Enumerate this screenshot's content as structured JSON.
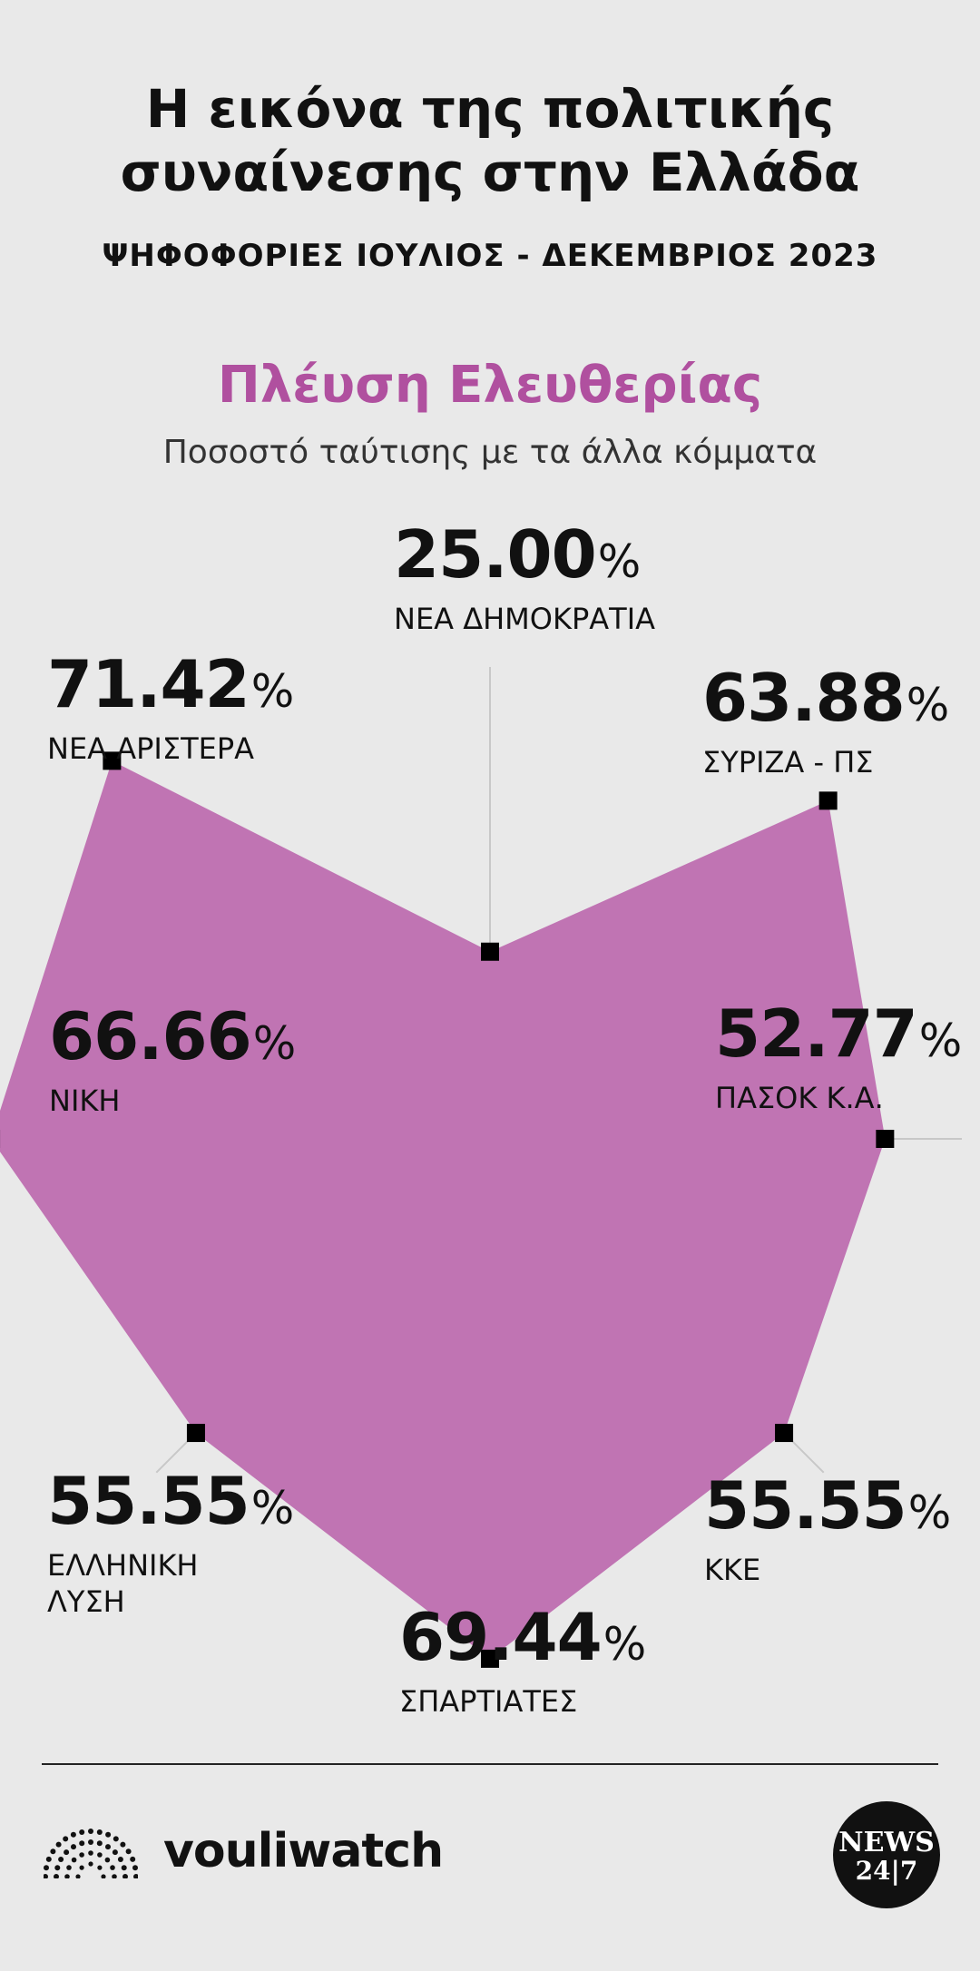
{
  "header": {
    "title_line1": "Η εικόνα της πολιτικής",
    "title_line2": "συναίνεσης στην Ελλάδα",
    "subtitle": "ΨΗΦΟΦΟΡΙΕΣ ΙΟΥΛΙΟΣ - ΔΕΚΕΜΒΡΙΟΣ 2023"
  },
  "party": {
    "name": "Πλέυση Ελευθερίας",
    "description": "Ποσοστό ταύτισης με τα άλλα κόμματα",
    "color": "#b0509f"
  },
  "chart_data": {
    "type": "radar",
    "title": "Πλέυση Ελευθερίας",
    "subtitle": "Ποσοστό ταύτισης με τα άλλα κόμματα",
    "unit": "%",
    "range": [
      0,
      100
    ],
    "fill_color": "#c074b3",
    "axes": [
      {
        "label": "ΝΕΑ ΔΗΜΟΚΡΑΤΙΑ",
        "value": 25.0,
        "display": "25.00"
      },
      {
        "label": "ΣΥΡΙΖΑ - ΠΣ",
        "value": 63.88,
        "display": "63.88"
      },
      {
        "label": "ΠΑΣΟΚ Κ.Α.",
        "value": 52.77,
        "display": "52.77"
      },
      {
        "label": "ΚΚΕ",
        "value": 55.55,
        "display": "55.55"
      },
      {
        "label": "ΣΠΑΡΤΙΑΤΕΣ",
        "value": 69.44,
        "display": "69.44"
      },
      {
        "label": "ΕΛΛΗΝΙΚΗ ΛΥΣΗ",
        "value": 55.55,
        "display": "55.55"
      },
      {
        "label": "ΝΙΚΗ",
        "value": 66.66,
        "display": "66.66"
      },
      {
        "label": "ΝΕΑ ΑΡΙΣΤΕΡΑ",
        "value": 71.42,
        "display": "71.42"
      }
    ]
  },
  "labels": {
    "nd_name": "ΝΕΑ ΔΗΜΟΚΡΑΤΙΑ",
    "syriza_name": "ΣΥΡΙΖΑ - ΠΣ",
    "pasok_name": "ΠΑΣΟΚ Κ.Α.",
    "kke_name": "ΚΚΕ",
    "spartiates_name": "ΣΠΑΡΤΙΑΤΕΣ",
    "elliniki_line1": "ΕΛΛΗΝΙΚΗ",
    "elliniki_line2": "ΛΥΣΗ",
    "niki_name": "ΝΙΚΗ",
    "nea_aristera_name": "ΝΕΑ ΑΡΙΣΤΕΡΑ",
    "percent_sign": "%"
  },
  "footer": {
    "brand": "vouliwatch",
    "badge_line1": "NEWS",
    "badge_line2": "24|7"
  }
}
